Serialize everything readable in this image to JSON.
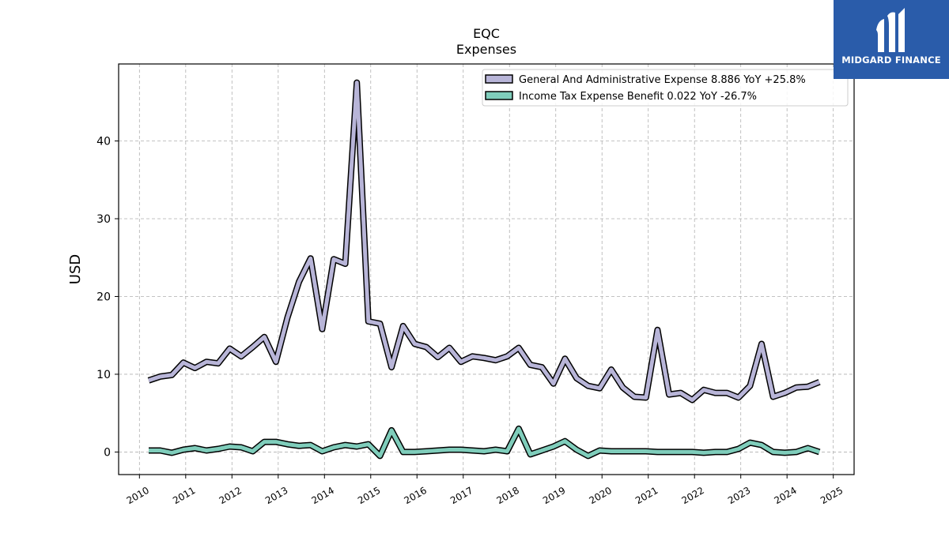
{
  "brand": {
    "name": "MIDGARD FINANCE",
    "bg_color": "#2a5caa",
    "logo_icon": "midgard-m-logo-icon"
  },
  "chart_data": {
    "type": "line",
    "title": "EQC",
    "subtitle": "Expenses",
    "xlabel": "",
    "ylabel": "USD",
    "xlim": [
      2009.55,
      2025.45
    ],
    "ylim": [
      -2.9,
      49.9
    ],
    "yticks": [
      0,
      10,
      20,
      30,
      40
    ],
    "xticks": [
      "2010",
      "2011",
      "2012",
      "2013",
      "2014",
      "2015",
      "2016",
      "2017",
      "2018",
      "2019",
      "2020",
      "2021",
      "2022",
      "2023",
      "2024",
      "2025"
    ],
    "grid": true,
    "legend_position": "top-right",
    "series": [
      {
        "name": "General And Administrative Expense  8.886 YoY +25.8%",
        "color": "#b8b5d8",
        "x": [
          2010.2,
          2010.45,
          2010.7,
          2010.95,
          2011.2,
          2011.45,
          2011.7,
          2011.95,
          2012.2,
          2012.45,
          2012.7,
          2012.95,
          2013.2,
          2013.45,
          2013.7,
          2013.95,
          2014.2,
          2014.45,
          2014.7,
          2014.95,
          2015.2,
          2015.45,
          2015.7,
          2015.95,
          2016.2,
          2016.45,
          2016.7,
          2016.95,
          2017.2,
          2017.45,
          2017.7,
          2017.95,
          2018.2,
          2018.45,
          2018.7,
          2018.95,
          2019.2,
          2019.45,
          2019.7,
          2019.95,
          2020.2,
          2020.45,
          2020.7,
          2020.95,
          2021.2,
          2021.45,
          2021.7,
          2021.95,
          2022.2,
          2022.45,
          2022.7,
          2022.95,
          2023.2,
          2023.45,
          2023.7,
          2023.95,
          2024.2,
          2024.45,
          2024.7
        ],
        "values": [
          9.2,
          9.7,
          9.9,
          11.5,
          10.8,
          11.6,
          11.4,
          13.3,
          12.3,
          13.5,
          14.8,
          11.6,
          17.3,
          21.9,
          24.9,
          15.8,
          24.8,
          24.2,
          47.5,
          16.8,
          16.5,
          10.9,
          16.2,
          13.9,
          13.5,
          12.2,
          13.4,
          11.6,
          12.3,
          12.1,
          11.8,
          12.3,
          13.4,
          11.2,
          10.9,
          8.8,
          12.0,
          9.5,
          8.5,
          8.2,
          10.6,
          8.3,
          7.1,
          7.0,
          15.7,
          7.4,
          7.6,
          6.7,
          8.0,
          7.6,
          7.6,
          7.0,
          8.5,
          13.9,
          7.1,
          7.6,
          8.3,
          8.4,
          9.0
        ]
      },
      {
        "name": "Income Tax Expense Benefit  0.022 YoY -26.7%",
        "color": "#7fcdbb",
        "x": [
          2010.2,
          2010.45,
          2010.7,
          2010.95,
          2011.2,
          2011.45,
          2011.7,
          2011.95,
          2012.2,
          2012.45,
          2012.7,
          2012.95,
          2013.2,
          2013.45,
          2013.7,
          2013.95,
          2014.2,
          2014.45,
          2014.7,
          2014.95,
          2015.2,
          2015.45,
          2015.7,
          2015.95,
          2016.2,
          2016.45,
          2016.7,
          2016.95,
          2017.2,
          2017.45,
          2017.7,
          2017.95,
          2018.2,
          2018.45,
          2018.7,
          2018.95,
          2019.2,
          2019.45,
          2019.7,
          2019.95,
          2020.2,
          2020.45,
          2020.7,
          2020.95,
          2021.2,
          2021.45,
          2021.7,
          2021.95,
          2022.2,
          2022.45,
          2022.7,
          2022.95,
          2023.2,
          2023.45,
          2023.7,
          2023.95,
          2024.2,
          2024.45,
          2024.7
        ],
        "values": [
          0.2,
          0.2,
          -0.1,
          0.3,
          0.5,
          0.2,
          0.4,
          0.7,
          0.6,
          0.1,
          1.3,
          1.3,
          1.0,
          0.8,
          0.9,
          0.1,
          0.6,
          0.9,
          0.7,
          1.0,
          -0.5,
          2.8,
          0.0,
          0.0,
          0.1,
          0.2,
          0.3,
          0.3,
          0.2,
          0.1,
          0.3,
          0.1,
          3.0,
          -0.3,
          0.2,
          0.7,
          1.4,
          0.3,
          -0.5,
          0.2,
          0.1,
          0.1,
          0.1,
          0.1,
          0.0,
          0.0,
          0.0,
          0.0,
          -0.1,
          0.0,
          0.0,
          0.4,
          1.2,
          0.9,
          0.0,
          -0.1,
          0.0,
          0.5,
          0.0
        ]
      }
    ]
  }
}
